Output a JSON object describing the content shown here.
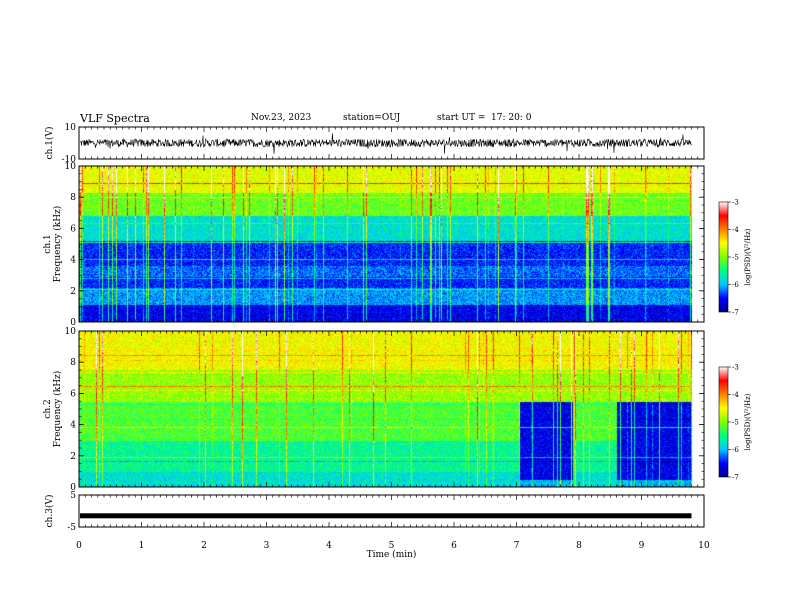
{
  "header": {
    "title": "VLF Spectra",
    "date": "Nov.23, 2023",
    "station": "station=OUJ",
    "start_label": "start  UT  =",
    "start_time": "17: 20: 0"
  },
  "chart_data": [
    {
      "type": "line",
      "panel": "ch1_waveform",
      "ylabel": "ch.1(V)",
      "ylim": [
        -10,
        10
      ],
      "yticks": [
        "10",
        "-10"
      ],
      "xlim": [
        0,
        10
      ],
      "baseline": 0,
      "color": "#000000"
    },
    {
      "type": "heatmap",
      "panel": "ch1_spectrogram",
      "ylabel": "ch.1\nFrequency  (kHz)",
      "ylim": [
        0,
        10
      ],
      "yticks": [
        "0",
        "2",
        "4",
        "6",
        "8",
        "10"
      ],
      "xlim": [
        0,
        10
      ],
      "data_end_min": 9.8,
      "colorbar": {
        "label": "log(PSD)(V²/Hz)",
        "min": -7,
        "max": -3,
        "ticks": [
          "-3",
          "-4",
          "-5",
          "-6",
          "-7"
        ]
      }
    },
    {
      "type": "heatmap",
      "panel": "ch2_spectrogram",
      "ylabel": "ch.2\nFrequency  (kHz)",
      "ylim": [
        0,
        10
      ],
      "yticks": [
        "0",
        "2",
        "4",
        "6",
        "8",
        "10"
      ],
      "xlim": [
        0,
        10
      ],
      "data_end_min": 9.8,
      "colorbar": {
        "label": "log(PSD)(V²/Hz)",
        "min": -7,
        "max": -3,
        "ticks": [
          "-3",
          "-4",
          "-5",
          "-6",
          "-7"
        ]
      }
    },
    {
      "type": "line",
      "panel": "ch3_waveform",
      "ylabel": "ch.3(V)",
      "ylim": [
        -5,
        5
      ],
      "yticks": [
        "5",
        "-5"
      ],
      "xlim": [
        0,
        10
      ],
      "baseline": -1.5,
      "color": "#000000"
    }
  ],
  "xaxis": {
    "label": "Time  (min)",
    "ticks": [
      "0",
      "1",
      "2",
      "3",
      "4",
      "5",
      "6",
      "7",
      "8",
      "9",
      "10"
    ]
  },
  "colors": {
    "colormap": [
      "#00008b",
      "#0000ff",
      "#00c8ff",
      "#00ff80",
      "#7fff00",
      "#ffff00",
      "#ff8000",
      "#ff0000",
      "#ffffff"
    ]
  }
}
